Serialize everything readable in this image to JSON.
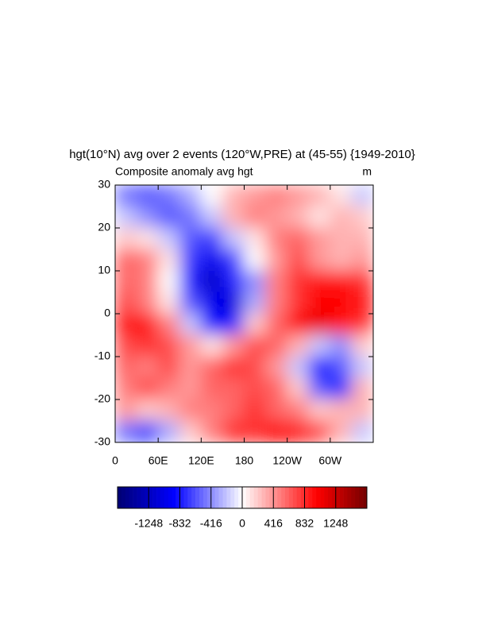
{
  "chart_data": {
    "type": "heatmap",
    "title": "hgt(10°N) avg over 2 events (120°W,PRE) at (45-55) {1949-2010}",
    "subtitle": "Composite anomaly avg hgt",
    "units": "m",
    "x": [
      15,
      45,
      75,
      105,
      135,
      165,
      195,
      225,
      255,
      285,
      315,
      345
    ],
    "y": [
      27.5,
      22.5,
      17.5,
      12.5,
      7.5,
      2.5,
      -2.5,
      -7.5,
      -12.5,
      -17.5,
      -22.5,
      -27.5
    ],
    "values": [
      [
        -500,
        -600,
        -500,
        -300,
        0,
        300,
        400,
        500,
        400,
        300,
        100,
        -200
      ],
      [
        -200,
        -400,
        -600,
        -500,
        -200,
        300,
        500,
        400,
        300,
        100,
        300,
        200
      ],
      [
        200,
        100,
        -200,
        -600,
        -700,
        -200,
        100,
        500,
        600,
        400,
        300,
        300
      ],
      [
        600,
        500,
        100,
        -700,
        -1000,
        -700,
        0,
        400,
        700,
        400,
        300,
        400
      ],
      [
        600,
        500,
        0,
        -800,
        -1200,
        -800,
        -400,
        500,
        800,
        900,
        900,
        800
      ],
      [
        700,
        500,
        100,
        -600,
        -1000,
        -1100,
        -300,
        500,
        800,
        1000,
        1000,
        900
      ],
      [
        900,
        900,
        500,
        -200,
        -900,
        -800,
        200,
        600,
        1000,
        1100,
        900,
        800
      ],
      [
        700,
        800,
        700,
        400,
        100,
        400,
        700,
        600,
        300,
        -200,
        -400,
        200
      ],
      [
        600,
        500,
        700,
        400,
        600,
        800,
        700,
        400,
        -200,
        -900,
        -600,
        -200
      ],
      [
        500,
        700,
        500,
        400,
        600,
        600,
        700,
        600,
        200,
        -600,
        -800,
        300
      ],
      [
        400,
        200,
        300,
        500,
        500,
        600,
        800,
        600,
        500,
        200,
        300,
        300
      ],
      [
        -500,
        -700,
        -300,
        200,
        500,
        800,
        800,
        1000,
        900,
        700,
        300,
        -200
      ]
    ],
    "xlim": [
      0,
      360
    ],
    "xticks": [
      0,
      {
        "value": 60,
        "label": "60E"
      },
      {
        "value": 120,
        "label": "120E"
      },
      180,
      {
        "value": 240,
        "label": "120W"
      },
      {
        "value": 300,
        "label": "60W"
      }
    ],
    "ylim": [
      -30,
      30
    ],
    "yticks": [
      -30,
      -20,
      -10,
      0,
      10,
      20,
      30
    ],
    "colorbar": {
      "lim": [
        -1664,
        1664
      ],
      "ticks": [
        -1248,
        -832,
        -416,
        0,
        416,
        832,
        1248
      ]
    }
  }
}
